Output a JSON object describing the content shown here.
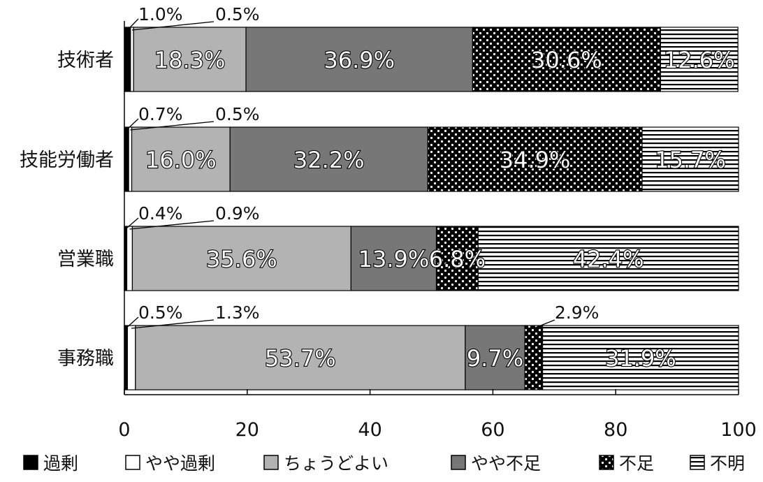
{
  "chart_data": {
    "type": "bar",
    "orientation": "horizontal",
    "stacked": true,
    "categories": [
      "技術者",
      "技能労働者",
      "営業職",
      "事務職"
    ],
    "series": [
      {
        "name": "過剰",
        "values": [
          1.0,
          0.7,
          0.4,
          0.5
        ],
        "color": "#000000",
        "pattern": "solid"
      },
      {
        "name": "やや過剰",
        "values": [
          0.5,
          0.5,
          0.9,
          1.3
        ],
        "color": "#ffffff",
        "pattern": "solid"
      },
      {
        "name": "ちょうどよい",
        "values": [
          18.3,
          16.0,
          35.6,
          53.7
        ],
        "color": "#b3b3b3",
        "pattern": "solid"
      },
      {
        "name": "やや不足",
        "values": [
          36.9,
          32.2,
          13.9,
          9.7
        ],
        "color": "#777777",
        "pattern": "solid"
      },
      {
        "name": "不足",
        "values": [
          30.6,
          34.9,
          6.8,
          2.9
        ],
        "color": "#000000",
        "pattern": "dots"
      },
      {
        "name": "不明",
        "values": [
          12.6,
          15.7,
          42.4,
          31.9
        ],
        "color": "#ffffff",
        "pattern": "horizontal-lines"
      }
    ],
    "data_labels": [
      [
        "1.0%",
        "0.5%",
        "18.3%",
        "36.9%",
        "30.6%",
        "12.6%"
      ],
      [
        "0.7%",
        "0.5%",
        "16.0%",
        "32.2%",
        "34.9%",
        "15.7%"
      ],
      [
        "0.4%",
        "0.9%",
        "35.6%",
        "13.9%",
        "6.8%",
        "42.4%"
      ],
      [
        "0.5%",
        "1.3%",
        "53.7%",
        "9.7%",
        "2.9%",
        "31.9%"
      ]
    ],
    "xlim": [
      0,
      100
    ],
    "xticks": [
      "0",
      "20",
      "40",
      "60",
      "80",
      "100"
    ],
    "legend_position": "bottom",
    "grid": false
  }
}
